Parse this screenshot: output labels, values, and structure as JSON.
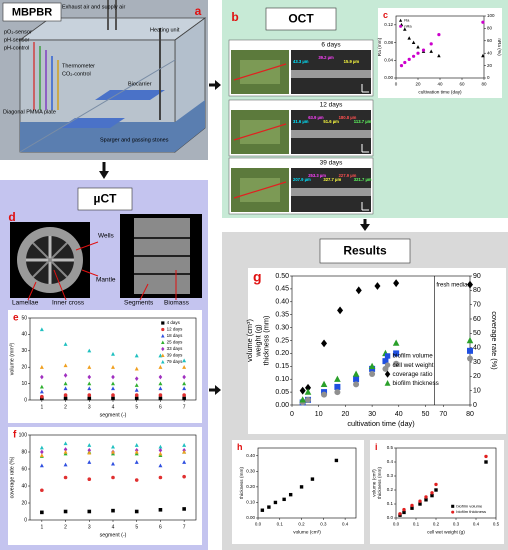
{
  "mbpbr": {
    "title": "MBPBR",
    "panel": "a",
    "labels": [
      "Exhaust air and supply air",
      "Heating unit",
      "pO₂-sensor",
      "pH-sensor",
      "pH-control",
      "Thermometer",
      "CO₂-control",
      "Biocarrier",
      "Diagonal PMMA plate",
      "Sparger and gassing stones"
    ]
  },
  "oct": {
    "title": "OCT",
    "panel": "b",
    "images": [
      {
        "label": "6 days",
        "measurements": [
          "43.3 µm",
          "39.2 µm",
          "15.9 µm"
        ]
      },
      {
        "label": "12 days",
        "measurements": [
          "31.6 µm",
          "63.9 µm",
          "51.6 µm",
          "180.8 µm",
          "113.7 µm"
        ]
      },
      {
        "label": "39 days",
        "measurements": [
          "207.9 µm",
          "253.3 µm",
          "327.7 µm",
          "227.9 µm",
          "321.7 µm"
        ]
      }
    ]
  },
  "uct": {
    "title": "µCT",
    "panel": "d",
    "labels": [
      "Wells",
      "Mantle",
      "Lamellae",
      "Inner cross",
      "Segments",
      "Biomass"
    ]
  },
  "results": {
    "title": "Results"
  },
  "chart_data": [
    {
      "type": "scatter",
      "panel": "c",
      "x_label": "cultivation time (day)",
      "y_label": "Ra (mm)",
      "y2_label": "nRa (%)",
      "xlim": [
        0,
        80
      ],
      "xticks": [
        0,
        20,
        40,
        60,
        80
      ],
      "ylim": [
        0,
        0.14
      ],
      "yticks": [
        {
          "value": 0,
          "label": "0.00"
        },
        0.04,
        0.08,
        0.12
      ],
      "y2lim": [
        0,
        100
      ],
      "y2ticks": [
        0,
        20,
        40,
        60,
        80,
        100
      ],
      "legend": "top-left",
      "series": [
        {
          "name": "Ra",
          "color": "#000000",
          "marker": "triangle",
          "x": [
            5,
            8,
            12,
            16,
            20,
            25,
            32,
            39,
            79
          ],
          "values": [
            0.12,
            0.11,
            0.09,
            0.08,
            0.07,
            0.06,
            0.06,
            0.05,
            0.05
          ]
        },
        {
          "name": "nRa",
          "color": "#cc00cc",
          "marker": "circle",
          "axis": "y2",
          "x": [
            5,
            8,
            12,
            16,
            20,
            25,
            32,
            39,
            79
          ],
          "values": [
            20,
            25,
            30,
            35,
            40,
            45,
            55,
            70,
            90
          ]
        }
      ]
    },
    {
      "type": "scatter",
      "panel": "e",
      "x_label": "segment (-)",
      "y_label": "volume (mm³)",
      "xlim": [
        0.5,
        7.5
      ],
      "xticks": [
        1,
        2,
        3,
        4,
        5,
        6,
        7
      ],
      "ylim": [
        0,
        50
      ],
      "yticks": [
        0,
        10,
        20,
        30,
        40,
        50
      ],
      "x": [
        1,
        2,
        3,
        4,
        5,
        6,
        7
      ],
      "legend": "top-right",
      "series": [
        {
          "name": "4 days",
          "color": "#000000",
          "marker": "square",
          "values": [
            1,
            1,
            1,
            1,
            1,
            1,
            1
          ]
        },
        {
          "name": "12 days",
          "color": "#e03030",
          "marker": "circle",
          "values": [
            2,
            3,
            3,
            3,
            3,
            3,
            3
          ]
        },
        {
          "name": "18 days",
          "color": "#3050e0",
          "marker": "triangle",
          "values": [
            5,
            7,
            7,
            7,
            6,
            7,
            7
          ]
        },
        {
          "name": "25 days",
          "color": "#30b030",
          "marker": "triangle",
          "values": [
            8,
            10,
            10,
            10,
            9,
            10,
            10
          ]
        },
        {
          "name": "33 days",
          "color": "#a030c0",
          "marker": "diamond",
          "values": [
            14,
            15,
            14,
            14,
            13,
            14,
            14
          ]
        },
        {
          "name": "39 days",
          "color": "#f0a020",
          "marker": "triangle",
          "values": [
            20,
            21,
            20,
            20,
            19,
            20,
            20
          ]
        },
        {
          "name": "79 days",
          "color": "#20c0c0",
          "marker": "triangle",
          "values": [
            43,
            34,
            30,
            28,
            27,
            27,
            24
          ]
        }
      ]
    },
    {
      "type": "scatter",
      "panel": "f",
      "x_label": "segment (-)",
      "y_label": "coverage rate (%)",
      "xlim": [
        0.5,
        7.5
      ],
      "xticks": [
        1,
        2,
        3,
        4,
        5,
        6,
        7
      ],
      "ylim": [
        0,
        100
      ],
      "yticks": [
        0,
        20,
        40,
        60,
        80,
        100
      ],
      "x": [
        1,
        2,
        3,
        4,
        5,
        6,
        7
      ],
      "series": [
        {
          "color": "#000000",
          "marker": "square",
          "values": [
            9,
            10,
            10,
            11,
            10,
            12,
            13
          ]
        },
        {
          "color": "#e03030",
          "marker": "circle",
          "values": [
            35,
            50,
            48,
            50,
            47,
            50,
            51
          ]
        },
        {
          "color": "#3050e0",
          "marker": "triangle",
          "values": [
            64,
            65,
            68,
            66,
            68,
            64,
            68
          ]
        },
        {
          "color": "#30b030",
          "marker": "triangle",
          "values": [
            75,
            78,
            80,
            78,
            78,
            76,
            80
          ]
        },
        {
          "color": "#a030c0",
          "marker": "diamond",
          "values": [
            80,
            83,
            82,
            80,
            82,
            82,
            82
          ]
        },
        {
          "color": "#f0a020",
          "marker": "triangle",
          "values": [
            76,
            80,
            79,
            80,
            80,
            78,
            80
          ]
        },
        {
          "color": "#20c0c0",
          "marker": "triangle",
          "values": [
            85,
            90,
            88,
            86,
            88,
            86,
            88
          ]
        }
      ]
    },
    {
      "type": "scatter",
      "panel": "g",
      "x_label": "cultivation time (day)",
      "y_label": [
        "volume (cm³)",
        "weight (g)",
        "thickness (mm)"
      ],
      "y2_label": "coverage rate (%)",
      "xlim": [
        0,
        80
      ],
      "xbreak": [
        50,
        70
      ],
      "xticks": [
        0,
        10,
        20,
        30,
        40,
        50,
        70,
        80
      ],
      "ylim": [
        0,
        0.5
      ],
      "yticks": [
        {
          "value": 0,
          "label": "0.00"
        },
        0.05,
        {
          "value": 0.1,
          "label": "0.10"
        },
        0.15,
        {
          "value": 0.2,
          "label": "0.20"
        },
        0.25,
        {
          "value": 0.3,
          "label": "0.30"
        },
        0.35,
        {
          "value": 0.4,
          "label": "0.40"
        },
        0.45,
        {
          "value": 0.5,
          "label": "0.50"
        }
      ],
      "y2lim": [
        0,
        90
      ],
      "y2ticks": [
        0,
        10,
        20,
        30,
        40,
        50,
        60,
        70,
        80,
        90
      ],
      "annotation": "fresh media",
      "legend": "center-right",
      "series": [
        {
          "name": "biofilm volume",
          "color": "#1f4fe0",
          "marker": "square",
          "x": [
            4,
            6,
            12,
            17,
            24,
            30,
            35,
            39,
            80
          ],
          "values": [
            0.01,
            0.02,
            0.05,
            0.07,
            0.1,
            0.14,
            0.17,
            0.2,
            0.21
          ]
        },
        {
          "name": "cell wet weight",
          "color": "#909090",
          "marker": "circle",
          "x": [
            4,
            6,
            12,
            17,
            24,
            30,
            35,
            39,
            80
          ],
          "values": [
            0.01,
            0.02,
            0.04,
            0.05,
            0.08,
            0.12,
            0.14,
            0.16,
            0.18
          ]
        },
        {
          "name": "coverage ratio",
          "color": "#000000",
          "marker": "diamond",
          "axis": "y2",
          "x": [
            4,
            6,
            12,
            18,
            25,
            32,
            39,
            80
          ],
          "values": [
            10,
            12,
            43,
            66,
            80,
            83,
            85,
            84
          ]
        },
        {
          "name": "biofilm thickness",
          "color": "#2aa02a",
          "marker": "triangle",
          "x": [
            4,
            6,
            12,
            17,
            24,
            30,
            35,
            39,
            80
          ],
          "values": [
            0.02,
            0.05,
            0.08,
            0.1,
            0.12,
            0.15,
            0.2,
            0.24,
            0.25
          ]
        }
      ]
    },
    {
      "type": "scatter",
      "panel": "h",
      "x_label": "volume (cm³)",
      "y_label": "thickness (mm)",
      "xlim": [
        0,
        0.45
      ],
      "xticks": [
        {
          "value": 0,
          "label": "0.0"
        },
        0.1,
        0.2,
        0.3,
        0.4
      ],
      "ylim": [
        0,
        0.45
      ],
      "yticks": [
        {
          "value": 0,
          "label": "0.00"
        },
        {
          "value": 0.1,
          "label": "0.10"
        },
        {
          "value": 0.2,
          "label": "0.20"
        },
        {
          "value": 0.3,
          "label": "0.30"
        },
        {
          "value": 0.4,
          "label": "0.40"
        }
      ],
      "series": [
        {
          "color": "#000000",
          "marker": "square",
          "x": [
            0.02,
            0.05,
            0.08,
            0.12,
            0.15,
            0.2,
            0.25,
            0.36
          ],
          "values": [
            0.05,
            0.07,
            0.1,
            0.12,
            0.15,
            0.2,
            0.25,
            0.37
          ]
        }
      ]
    },
    {
      "type": "scatter",
      "panel": "i",
      "x_label": "cell wet weight (g)",
      "y_label": [
        "volume (cm³)",
        "thickness (mm)"
      ],
      "xlim": [
        0,
        0.5
      ],
      "xticks": [
        {
          "value": 0,
          "label": "0.0"
        },
        0.1,
        0.2,
        0.3,
        0.4,
        0.5
      ],
      "ylim": [
        0,
        0.5
      ],
      "yticks": [
        {
          "value": 0,
          "label": "0.0"
        },
        0.1,
        0.2,
        0.3,
        0.4,
        0.5
      ],
      "legend": "bottom-right",
      "series": [
        {
          "name": "biofilm volume",
          "color": "#000000",
          "marker": "square",
          "x": [
            0.02,
            0.04,
            0.08,
            0.12,
            0.15,
            0.18,
            0.2,
            0.45
          ],
          "values": [
            0.02,
            0.04,
            0.07,
            0.1,
            0.13,
            0.16,
            0.2,
            0.4
          ]
        },
        {
          "name": "biofilm thickness",
          "color": "#e02020",
          "marker": "circle",
          "x": [
            0.02,
            0.04,
            0.08,
            0.12,
            0.15,
            0.18,
            0.2,
            0.45
          ],
          "values": [
            0.03,
            0.06,
            0.09,
            0.12,
            0.15,
            0.18,
            0.24,
            0.44
          ]
        }
      ]
    }
  ]
}
